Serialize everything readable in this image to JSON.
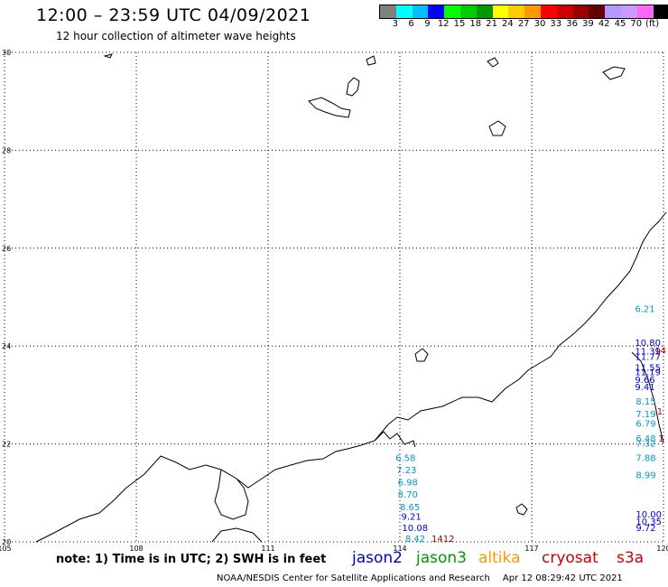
{
  "header": {
    "title": "12:00 – 23:59 UTC 04/09/2021",
    "subtitle": "12 hour collection of altimeter wave heights"
  },
  "legend": {
    "colors": [
      "#808080",
      "#00ffff",
      "#00bfff",
      "#0000ff",
      "#00ff00",
      "#00cc00",
      "#009900",
      "#ffff00",
      "#ffcc00",
      "#ff9900",
      "#ff0000",
      "#cc0000",
      "#990000",
      "#660000",
      "#b399ff",
      "#cc99ff",
      "#ff66ff",
      "#000000"
    ],
    "labels": [
      "3",
      "6",
      "9",
      "12",
      "15",
      "18",
      "21",
      "24",
      "27",
      "30",
      "33",
      "36",
      "39",
      "42",
      "45",
      "70",
      "(ft)"
    ]
  },
  "axes": {
    "y_labels": [
      "30",
      "28",
      "26",
      "24",
      "22",
      "20"
    ],
    "x_labels": [
      "105",
      "108",
      "111",
      "114",
      "117",
      "120"
    ],
    "lat_range": [
      20,
      30
    ],
    "lon_range": [
      105,
      120
    ]
  },
  "colors": {
    "jason2": "#0000cc",
    "jason3": "#009900",
    "altika": "#ff9900",
    "cryosat": "#cc0000",
    "s3a": "#cc0000",
    "cyan": "#0099cc",
    "maroon": "#990000"
  },
  "observations": [
    {
      "text": "6.21",
      "lon": 119.35,
      "lat": 24.7,
      "color": "#0099cc"
    },
    {
      "text": "10.80",
      "lon": 119.35,
      "lat": 24.0,
      "color": "#0000cc"
    },
    {
      "text": "11.39",
      "lon": 119.35,
      "lat": 23.83,
      "color": "#0000cc"
    },
    {
      "text": "11.77",
      "lon": 119.35,
      "lat": 23.72,
      "color": "#0000cc"
    },
    {
      "text": "11.55",
      "lon": 119.35,
      "lat": 23.5,
      "color": "#0000cc"
    },
    {
      "text": "11.19",
      "lon": 119.35,
      "lat": 23.4,
      "color": "#0000cc"
    },
    {
      "text": "9.66",
      "lon": 119.35,
      "lat": 23.25,
      "color": "#0000cc"
    },
    {
      "text": "9.41",
      "lon": 119.35,
      "lat": 23.1,
      "color": "#0000cc"
    },
    {
      "text": "8.15",
      "lon": 119.37,
      "lat": 22.8,
      "color": "#0099cc"
    },
    {
      "text": "7.19",
      "lon": 119.37,
      "lat": 22.55,
      "color": "#0099cc"
    },
    {
      "text": "6.79",
      "lon": 119.37,
      "lat": 22.35,
      "color": "#0099cc"
    },
    {
      "text": "6.48",
      "lon": 119.37,
      "lat": 22.05,
      "color": "#0099cc"
    },
    {
      "text": "7.32",
      "lon": 119.37,
      "lat": 21.95,
      "color": "#0099cc"
    },
    {
      "text": "7.88",
      "lon": 119.37,
      "lat": 21.65,
      "color": "#0099cc"
    },
    {
      "text": "8.99",
      "lon": 119.37,
      "lat": 21.3,
      "color": "#0099cc"
    },
    {
      "text": "10.00",
      "lon": 119.37,
      "lat": 20.5,
      "color": "#0000cc"
    },
    {
      "text": "10.35",
      "lon": 119.37,
      "lat": 20.35,
      "color": "#0000cc"
    },
    {
      "text": "9.72",
      "lon": 119.37,
      "lat": 20.22,
      "color": "#0000cc"
    },
    {
      "text": "14",
      "lon": 119.8,
      "lat": 23.85,
      "color": "#cc0000"
    },
    {
      "text": "1",
      "lon": 119.85,
      "lat": 22.6,
      "color": "#cc0000"
    },
    {
      "text": "1",
      "lon": 119.88,
      "lat": 22.05,
      "color": "#cc0000"
    },
    {
      "text": "6.58",
      "lon": 113.9,
      "lat": 21.65,
      "color": "#0099cc"
    },
    {
      "text": "7.23",
      "lon": 113.92,
      "lat": 21.4,
      "color": "#0099cc"
    },
    {
      "text": "6.98",
      "lon": 113.95,
      "lat": 21.15,
      "color": "#0099cc"
    },
    {
      "text": "8.70",
      "lon": 113.95,
      "lat": 20.9,
      "color": "#0099cc"
    },
    {
      "text": "8.65",
      "lon": 114.0,
      "lat": 20.65,
      "color": "#0099cc"
    },
    {
      "text": "9.21",
      "lon": 114.03,
      "lat": 20.45,
      "color": "#0000cc"
    },
    {
      "text": "10.08",
      "lon": 114.05,
      "lat": 20.22,
      "color": "#0000cc"
    },
    {
      "text": "8.42",
      "lon": 114.12,
      "lat": 20.0,
      "color": "#0099cc"
    },
    {
      "text": "1412",
      "lon": 114.72,
      "lat": 20.0,
      "color": "#990000"
    }
  ],
  "footer": {
    "note": "note:  1) Time is in UTC;  2) SWH is in feet",
    "jason2": "jason2",
    "jason3": "jason3",
    "altika": "altika",
    "cryosat": "cryosat",
    "s3a": "s3a",
    "credit": "NOAA/NESDIS Center for Satellite Applications and Research",
    "timestamp": "Apr 12 08:29:42 UTC 2021"
  }
}
